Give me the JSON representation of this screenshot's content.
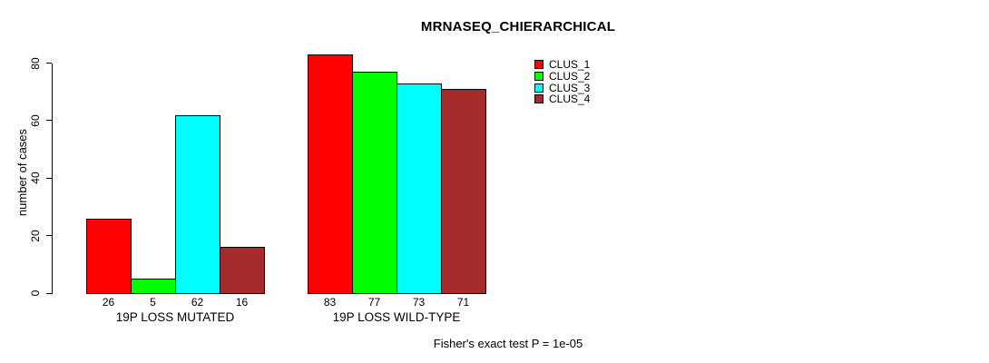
{
  "chart_data": {
    "type": "bar",
    "title": "MRNASEQ_CHIERARCHICAL",
    "ylabel": "number of cases",
    "xlabel": "",
    "yticks": [
      0,
      20,
      40,
      60,
      80
    ],
    "ylim": [
      0,
      84
    ],
    "grid": false,
    "legend_position": "top-right",
    "bar_value_labels": true,
    "categories": [
      "19P LOSS MUTATED",
      "19P LOSS WILD-TYPE"
    ],
    "series": [
      {
        "name": "CLUS_1",
        "color": "#ff0000",
        "values": [
          26,
          83
        ]
      },
      {
        "name": "CLUS_2",
        "color": "#00ff00",
        "values": [
          5,
          77
        ]
      },
      {
        "name": "CLUS_3",
        "color": "#00ffff",
        "values": [
          62,
          73
        ]
      },
      {
        "name": "CLUS_4",
        "color": "#a52a2a",
        "values": [
          16,
          71
        ]
      }
    ],
    "annotation": "Fisher's exact test P = 1e-05"
  },
  "colors": {
    "background": "#ffffff",
    "axis": "#000000",
    "bar_border": "#000000"
  }
}
